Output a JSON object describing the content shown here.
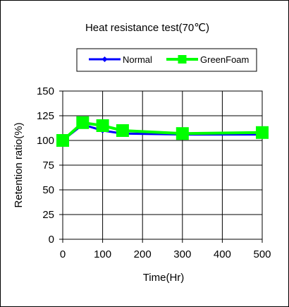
{
  "chart_data": {
    "type": "line",
    "title": "Heat resistance test(70℃)",
    "xlabel": "Time(Hr)",
    "ylabel": "Retention ratio(%)",
    "xlim": [
      0,
      500
    ],
    "ylim": [
      0,
      150
    ],
    "xticks": [
      0,
      100,
      200,
      300,
      400,
      500
    ],
    "yticks": [
      0,
      25,
      50,
      75,
      100,
      125,
      150
    ],
    "grid": true,
    "legend_position": "top",
    "series": [
      {
        "name": "Normal",
        "color": "#0000ff",
        "marker": "diamond",
        "x": [
          0,
          50,
          100,
          150,
          300,
          500
        ],
        "y": [
          100,
          116,
          110,
          107,
          106,
          106
        ]
      },
      {
        "name": "GreenFoam",
        "color": "#00ff00",
        "marker": "square",
        "x": [
          0,
          50,
          100,
          150,
          300,
          500
        ],
        "y": [
          100,
          118,
          115,
          110,
          107,
          108
        ]
      }
    ]
  }
}
